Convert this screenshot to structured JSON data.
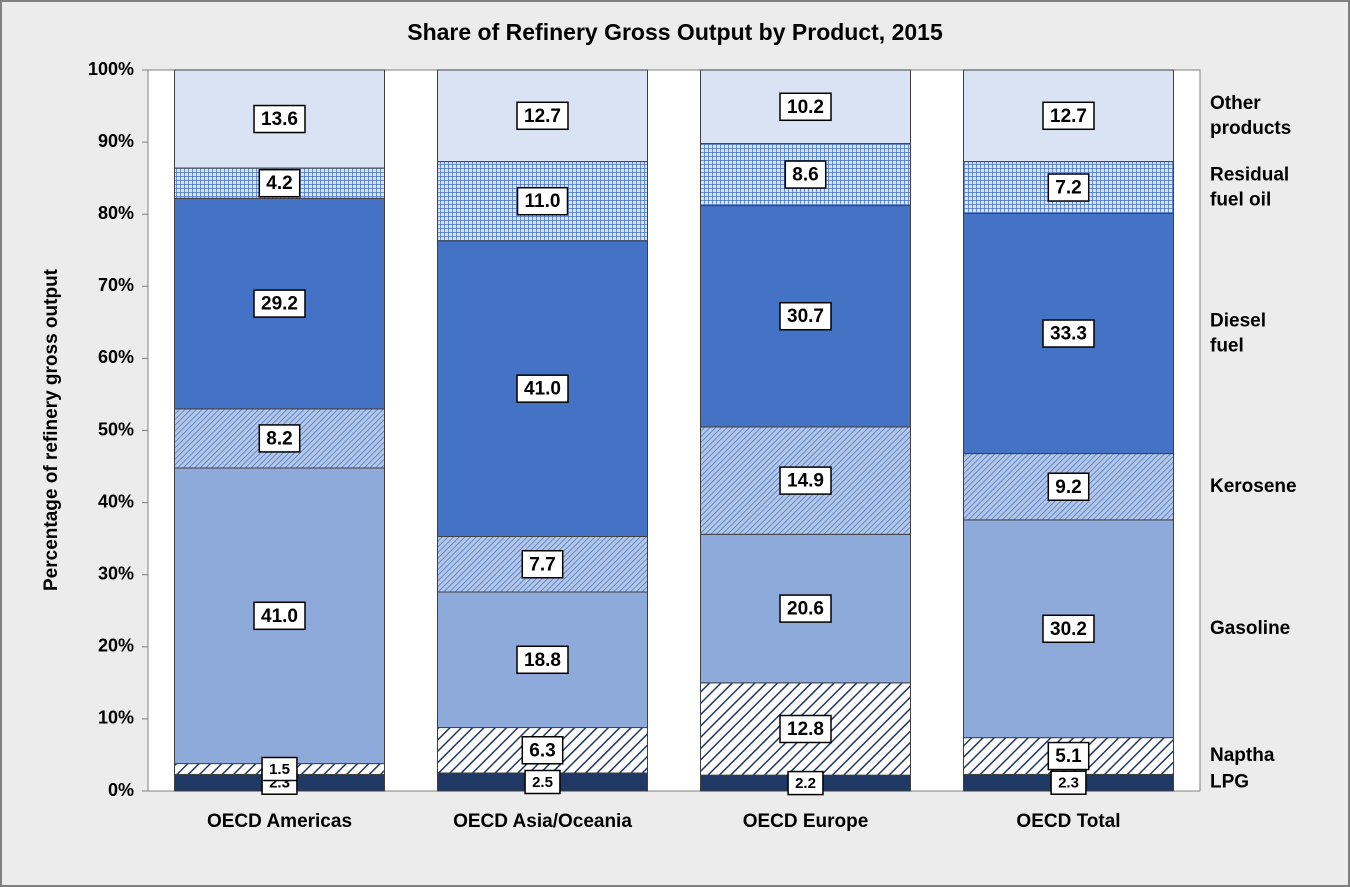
{
  "chart_data": {
    "type": "stacked_bar",
    "title": "Share of Refinery Gross Output by Product, 2015",
    "y_label": "Percentage of refinery gross output",
    "categories": [
      "OECD Americas",
      "OECD Asia/Oceania",
      "OECD Europe",
      "OECD Total"
    ],
    "ylim": [
      0,
      100
    ],
    "yticks": [
      {
        "value": 0,
        "label": "0%"
      },
      {
        "value": 10,
        "label": "10%"
      },
      {
        "value": 20,
        "label": "20%"
      },
      {
        "value": 30,
        "label": "30%"
      },
      {
        "value": 40,
        "label": "40%"
      },
      {
        "value": 50,
        "label": "50%"
      },
      {
        "value": 60,
        "label": "60%"
      },
      {
        "value": 70,
        "label": "70%"
      },
      {
        "value": 80,
        "label": "80%"
      },
      {
        "value": 90,
        "label": "90%"
      },
      {
        "value": 100,
        "label": "100%"
      }
    ],
    "series": [
      {
        "name": "LPG",
        "color": "#1f3864",
        "pattern": "solid",
        "values": [
          2.3,
          2.5,
          2.2,
          2.3
        ],
        "value_labels": [
          "2.3",
          "2.5",
          "2.2",
          "2.3"
        ]
      },
      {
        "name": "Naptha",
        "color": "#1f3864",
        "pattern": "hatch",
        "values": [
          1.5,
          6.3,
          12.8,
          5.1
        ],
        "value_labels": [
          "1.5",
          "6.3",
          "12.8",
          "5.1"
        ]
      },
      {
        "name": "Gasoline",
        "color": "#8eaadb",
        "pattern": "solid",
        "values": [
          41.0,
          18.8,
          20.6,
          30.2
        ],
        "value_labels": [
          "41.0",
          "18.8",
          "20.6",
          "30.2"
        ]
      },
      {
        "name": "Kerosene",
        "color": "#4472c4",
        "pattern": "crosshatch",
        "values": [
          8.2,
          7.7,
          14.9,
          9.2
        ],
        "value_labels": [
          "8.2",
          "7.7",
          "14.9",
          "9.2"
        ]
      },
      {
        "name": "Diesel fuel",
        "color": "#4472c4",
        "pattern": "solid",
        "values": [
          29.2,
          41.0,
          30.7,
          33.3
        ],
        "value_labels": [
          "29.2",
          "41.0",
          "30.7",
          "33.3"
        ]
      },
      {
        "name": "Residual fuel oil",
        "color": "#4472c4",
        "pattern": "grid",
        "values": [
          4.2,
          11.0,
          8.6,
          7.2
        ],
        "value_labels": [
          "4.2",
          "11.0",
          "8.6",
          "7.2"
        ]
      },
      {
        "name": "Other products",
        "color": "#dae3f3",
        "pattern": "solid",
        "values": [
          13.6,
          12.7,
          10.2,
          12.7
        ],
        "value_labels": [
          "13.6",
          "12.7",
          "10.2",
          "12.7"
        ]
      }
    ]
  }
}
